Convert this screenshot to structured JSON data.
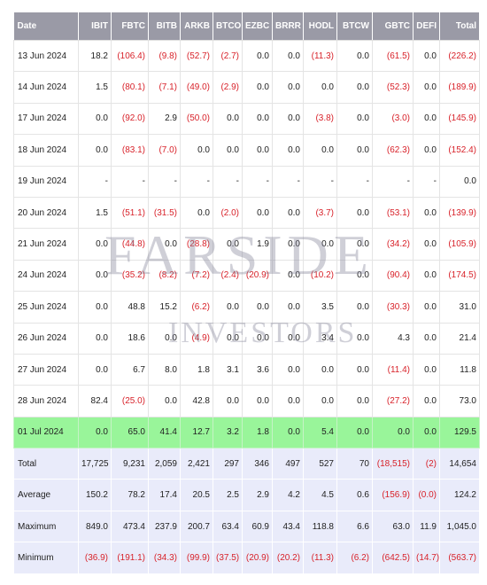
{
  "columns": [
    "Date",
    "IBIT",
    "FBTC",
    "BITB",
    "ARKB",
    "BTCO",
    "EZBC",
    "BRRR",
    "HODL",
    "BTCW",
    "GBTC",
    "DEFI",
    "Total"
  ],
  "rows": [
    [
      "13 Jun 2024",
      "18.2",
      "(106.4)",
      "(9.8)",
      "(52.7)",
      "(2.7)",
      "0.0",
      "0.0",
      "(11.3)",
      "0.0",
      "(61.5)",
      "0.0",
      "(226.2)"
    ],
    [
      "14 Jun 2024",
      "1.5",
      "(80.1)",
      "(7.1)",
      "(49.0)",
      "(2.9)",
      "0.0",
      "0.0",
      "0.0",
      "0.0",
      "(52.3)",
      "0.0",
      "(189.9)"
    ],
    [
      "17 Jun 2024",
      "0.0",
      "(92.0)",
      "2.9",
      "(50.0)",
      "0.0",
      "0.0",
      "0.0",
      "(3.8)",
      "0.0",
      "(3.0)",
      "0.0",
      "(145.9)"
    ],
    [
      "18 Jun 2024",
      "0.0",
      "(83.1)",
      "(7.0)",
      "0.0",
      "0.0",
      "0.0",
      "0.0",
      "0.0",
      "0.0",
      "(62.3)",
      "0.0",
      "(152.4)"
    ],
    [
      "19 Jun 2024",
      "-",
      "-",
      "-",
      "-",
      "-",
      "-",
      "-",
      "-",
      "-",
      "-",
      "-",
      "0.0"
    ],
    [
      "20 Jun 2024",
      "1.5",
      "(51.1)",
      "(31.5)",
      "0.0",
      "(2.0)",
      "0.0",
      "0.0",
      "(3.7)",
      "0.0",
      "(53.1)",
      "0.0",
      "(139.9)"
    ],
    [
      "21 Jun 2024",
      "0.0",
      "(44.8)",
      "0.0",
      "(28.8)",
      "0.0",
      "1.9",
      "0.0",
      "0.0",
      "0.0",
      "(34.2)",
      "0.0",
      "(105.9)"
    ],
    [
      "24 Jun 2024",
      "0.0",
      "(35.2)",
      "(8.2)",
      "(7.2)",
      "(2.4)",
      "(20.9)",
      "0.0",
      "(10.2)",
      "0.0",
      "(90.4)",
      "0.0",
      "(174.5)"
    ],
    [
      "25 Jun 2024",
      "0.0",
      "48.8",
      "15.2",
      "(6.2)",
      "0.0",
      "0.0",
      "0.0",
      "3.5",
      "0.0",
      "(30.3)",
      "0.0",
      "31.0"
    ],
    [
      "26 Jun 2024",
      "0.0",
      "18.6",
      "0.0",
      "(4.9)",
      "0.0",
      "0.0",
      "0.0",
      "3.4",
      "0.0",
      "4.3",
      "0.0",
      "21.4"
    ],
    [
      "27 Jun 2024",
      "0.0",
      "6.7",
      "8.0",
      "1.8",
      "3.1",
      "3.6",
      "0.0",
      "0.0",
      "0.0",
      "(11.4)",
      "0.0",
      "11.8"
    ],
    [
      "28 Jun 2024",
      "82.4",
      "(25.0)",
      "0.0",
      "42.8",
      "0.0",
      "0.0",
      "0.0",
      "0.0",
      "0.0",
      "(27.2)",
      "0.0",
      "73.0"
    ],
    [
      "01 Jul 2024",
      "0.0",
      "65.0",
      "41.4",
      "12.7",
      "3.2",
      "1.8",
      "0.0",
      "5.4",
      "0.0",
      "0.0",
      "0.0",
      "129.5"
    ]
  ],
  "highlight_row_index": 12,
  "summary": [
    [
      "Total",
      "17,725",
      "9,231",
      "2,059",
      "2,421",
      "297",
      "346",
      "497",
      "527",
      "70",
      "(18,515)",
      "(2)",
      "14,654"
    ],
    [
      "Average",
      "150.2",
      "78.2",
      "17.4",
      "20.5",
      "2.5",
      "2.9",
      "4.2",
      "4.5",
      "0.6",
      "(156.9)",
      "(0.0)",
      "124.2"
    ],
    [
      "Maximum",
      "849.0",
      "473.4",
      "237.9",
      "200.7",
      "63.4",
      "60.9",
      "43.4",
      "118.8",
      "6.6",
      "63.0",
      "11.9",
      "1,045.0"
    ],
    [
      "Minimum",
      "(36.9)",
      "(191.1)",
      "(34.3)",
      "(99.9)",
      "(37.5)",
      "(20.9)",
      "(20.2)",
      "(11.3)",
      "(6.2)",
      "(642.5)",
      "(14.7)",
      "(563.7)"
    ]
  ],
  "watermark": {
    "line1": "FARSIDE",
    "line2": "INVESTORS"
  },
  "colors": {
    "header_bg": "#9a9aa6",
    "negative": "#d8222a",
    "highlight_row": "#99f59a",
    "summary_bg": "#e9ebfa"
  }
}
